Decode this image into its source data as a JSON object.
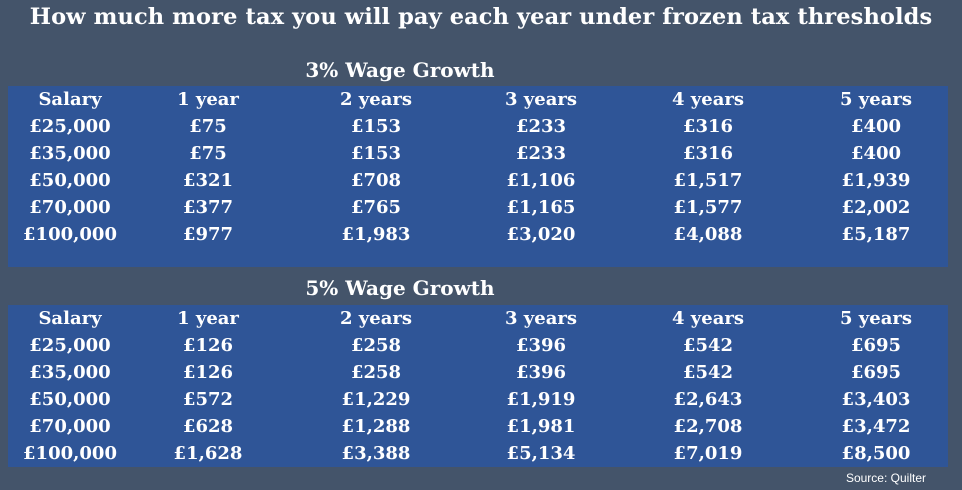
{
  "title": "How much more tax you will pay each year under frozen tax thresholds",
  "columns": [
    "Salary",
    "1 year",
    "2 years",
    "3 years",
    "4 years",
    "5 years"
  ],
  "sections": [
    {
      "heading": "3% Wage Growth",
      "rows": [
        [
          "£25,000",
          "£75",
          "£153",
          "£233",
          "£316",
          "£400"
        ],
        [
          "£35,000",
          "£75",
          "£153",
          "£233",
          "£316",
          "£400"
        ],
        [
          "£50,000",
          "£321",
          "£708",
          "£1,106",
          "£1,517",
          "£1,939"
        ],
        [
          "£70,000",
          "£377",
          "£765",
          "£1,165",
          "£1,577",
          "£2,002"
        ],
        [
          "£100,000",
          "£977",
          "£1,983",
          "£3,020",
          "£4,088",
          "£5,187"
        ]
      ]
    },
    {
      "heading": "5% Wage Growth",
      "rows": [
        [
          "£25,000",
          "£126",
          "£258",
          "£396",
          "£542",
          "£695"
        ],
        [
          "£35,000",
          "£126",
          "£258",
          "£396",
          "£542",
          "£695"
        ],
        [
          "£50,000",
          "£572",
          "£1,229",
          "£1,919",
          "£2,643",
          "£3,403"
        ],
        [
          "£70,000",
          "£628",
          "£1,288",
          "£1,981",
          "£2,708",
          "£3,472"
        ],
        [
          "£100,000",
          "£1,628",
          "£3,388",
          "£5,134",
          "£7,019",
          "£8,500"
        ]
      ]
    }
  ],
  "source": "Source: Quilter",
  "colors": {
    "background": "#44546a",
    "panel": "#2f5597",
    "text": "#ffffff"
  }
}
